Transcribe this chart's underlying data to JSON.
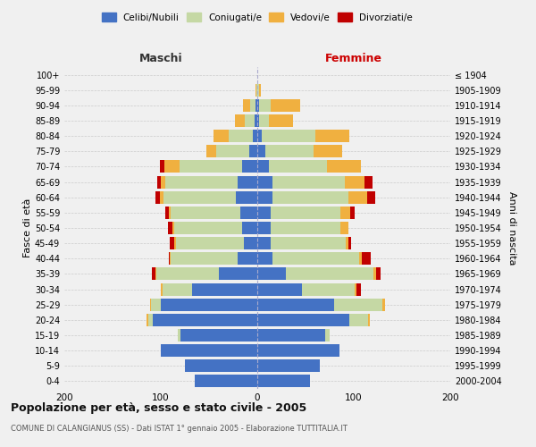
{
  "age_groups": [
    "0-4",
    "5-9",
    "10-14",
    "15-19",
    "20-24",
    "25-29",
    "30-34",
    "35-39",
    "40-44",
    "45-49",
    "50-54",
    "55-59",
    "60-64",
    "65-69",
    "70-74",
    "75-79",
    "80-84",
    "85-89",
    "90-94",
    "95-99",
    "100+"
  ],
  "birth_years": [
    "2000-2004",
    "1995-1999",
    "1990-1994",
    "1985-1989",
    "1980-1984",
    "1975-1979",
    "1970-1974",
    "1965-1969",
    "1960-1964",
    "1955-1959",
    "1950-1954",
    "1945-1949",
    "1940-1944",
    "1935-1939",
    "1930-1934",
    "1925-1929",
    "1920-1924",
    "1915-1919",
    "1910-1914",
    "1905-1909",
    "≤ 1904"
  ],
  "colors": {
    "celibe": "#4472c4",
    "coniugato": "#c5d8a4",
    "vedovo": "#f0b040",
    "divorziato": "#c00000"
  },
  "male": {
    "celibe": [
      65,
      75,
      100,
      80,
      108,
      100,
      68,
      40,
      20,
      14,
      16,
      18,
      22,
      20,
      16,
      8,
      5,
      3,
      2,
      0,
      0
    ],
    "coniugato": [
      0,
      0,
      0,
      2,
      5,
      10,
      30,
      65,
      70,
      70,
      70,
      72,
      75,
      75,
      65,
      35,
      25,
      10,
      5,
      1,
      0
    ],
    "vedovo": [
      0,
      0,
      0,
      0,
      2,
      1,
      2,
      1,
      1,
      2,
      2,
      2,
      4,
      5,
      15,
      10,
      15,
      10,
      8,
      1,
      0
    ],
    "divorziato": [
      0,
      0,
      0,
      0,
      0,
      0,
      0,
      3,
      1,
      5,
      5,
      3,
      5,
      4,
      5,
      0,
      0,
      0,
      0,
      0,
      0
    ]
  },
  "female": {
    "nubile": [
      55,
      65,
      85,
      70,
      95,
      80,
      46,
      30,
      16,
      14,
      14,
      14,
      16,
      16,
      12,
      8,
      5,
      2,
      2,
      0,
      0
    ],
    "coniugata": [
      0,
      0,
      0,
      5,
      20,
      50,
      55,
      90,
      90,
      78,
      72,
      72,
      78,
      75,
      60,
      50,
      55,
      10,
      12,
      2,
      0
    ],
    "vedova": [
      0,
      0,
      0,
      0,
      2,
      2,
      2,
      3,
      2,
      2,
      8,
      10,
      20,
      20,
      35,
      30,
      35,
      25,
      30,
      2,
      0
    ],
    "divorziata": [
      0,
      0,
      0,
      0,
      0,
      0,
      4,
      5,
      10,
      3,
      0,
      5,
      8,
      8,
      0,
      0,
      0,
      0,
      0,
      0,
      0
    ]
  },
  "title": "Popolazione per età, sesso e stato civile - 2005",
  "subtitle": "COMUNE DI CALANGIANUS (SS) - Dati ISTAT 1° gennaio 2005 - Elaborazione TUTTITALIA.IT",
  "xlabel_left": "Maschi",
  "xlabel_right": "Femmine",
  "ylabel_left": "Fasce di età",
  "ylabel_right": "Anni di nascita",
  "xlim": 200,
  "bg_color": "#f0f0f0",
  "grid_color": "#cccccc",
  "legend_labels": [
    "Celibi/Nubili",
    "Coniugati/e",
    "Vedovi/e",
    "Divorziati/e"
  ]
}
